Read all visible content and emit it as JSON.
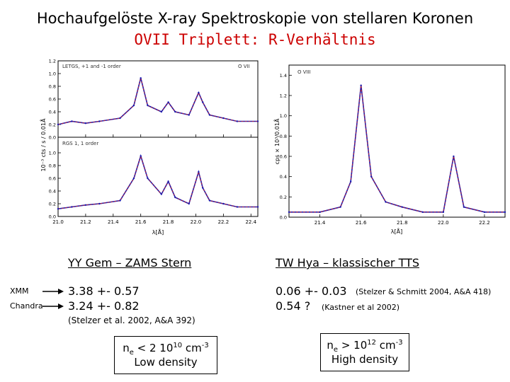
{
  "slide": {
    "title": "Hochaufgelöste X-ray Spektroskopie von stellaren Koronen",
    "subtitle": "OVII Triplett:  R-Verhältnis"
  },
  "left_panel": {
    "caption_top": "LETGS, +1 and -1 order",
    "label_top": "O VII",
    "caption_bottom": "RGS 1, 1 order",
    "ylabel": "10⁻³ cts / s / 0.01Å",
    "xlabel": "λ[Å]"
  },
  "right_panel": {
    "label": "O VIII",
    "ylabel": "cps × 10³/0.01Å",
    "xlabel": "λ[Å]"
  },
  "chart_data": [
    {
      "type": "line",
      "panel": "top",
      "caption": "LETGS, +1 and -1 order",
      "x_ticks": [
        "21.0",
        "21.2",
        "21.4",
        "21.6",
        "21.8",
        "22.0",
        "22.2",
        "22.4"
      ],
      "y_ticks": [
        "0.0",
        "0.2",
        "0.4",
        "0.6",
        "0.8",
        "1.0",
        "1.2"
      ],
      "xlim": [
        21.0,
        22.45
      ],
      "ylim": [
        0,
        1.2
      ],
      "xlabel": "λ[Å]",
      "ylabel": "10⁻³ cts / s / 0.01Å",
      "colors": {
        "data": "#1a1ab0",
        "model": "#d02020"
      },
      "x": [
        21.0,
        21.1,
        21.2,
        21.3,
        21.45,
        21.55,
        21.6,
        21.65,
        21.75,
        21.8,
        21.85,
        21.95,
        22.02,
        22.05,
        22.1,
        22.2,
        22.3,
        22.45
      ],
      "y": [
        0.2,
        0.25,
        0.22,
        0.25,
        0.3,
        0.5,
        0.93,
        0.5,
        0.4,
        0.55,
        0.4,
        0.35,
        0.7,
        0.55,
        0.35,
        0.3,
        0.25,
        0.25
      ]
    },
    {
      "type": "line",
      "panel": "bottom",
      "caption": "RGS 1, 1 order",
      "x_ticks": [
        "21.0",
        "21.2",
        "21.4",
        "21.6",
        "21.8",
        "22.0",
        "22.2",
        "22.4"
      ],
      "y_ticks": [
        "0.0",
        "0.2",
        "0.4",
        "0.6",
        "0.8",
        "1.0"
      ],
      "xlim": [
        21.0,
        22.45
      ],
      "ylim": [
        0,
        1.2
      ],
      "xlabel": "λ[Å]",
      "ylabel": "10⁻³ cts / s / 0.01Å",
      "colors": {
        "data": "#1a1ab0",
        "model": "#d02020"
      },
      "x": [
        21.0,
        21.1,
        21.2,
        21.3,
        21.45,
        21.55,
        21.6,
        21.65,
        21.75,
        21.8,
        21.85,
        21.95,
        22.02,
        22.05,
        22.1,
        22.2,
        22.3,
        22.45
      ],
      "y": [
        0.12,
        0.15,
        0.18,
        0.2,
        0.25,
        0.6,
        0.95,
        0.6,
        0.35,
        0.55,
        0.3,
        0.2,
        0.7,
        0.45,
        0.25,
        0.2,
        0.15,
        0.15
      ]
    },
    {
      "type": "line",
      "panel": "right",
      "label": "O VIII",
      "x_ticks": [
        "21.4",
        "21.6",
        "21.8",
        "22.0",
        "22.2"
      ],
      "y_ticks": [
        "0.0",
        "0.2",
        "0.4",
        "0.6",
        "0.8",
        "1.0",
        "1.2",
        "1.4"
      ],
      "xlim": [
        21.25,
        22.3
      ],
      "ylim": [
        0,
        1.5
      ],
      "xlabel": "λ[Å]",
      "ylabel": "cps × 10³/0.01Å",
      "colors": {
        "data": "#1a1ab0",
        "model": "#d02020"
      },
      "x": [
        21.25,
        21.4,
        21.5,
        21.55,
        21.6,
        21.65,
        21.72,
        21.8,
        21.9,
        22.0,
        22.05,
        22.1,
        22.2,
        22.3
      ],
      "y": [
        0.05,
        0.05,
        0.1,
        0.35,
        1.3,
        0.4,
        0.15,
        0.1,
        0.05,
        0.05,
        0.6,
        0.1,
        0.05,
        0.05
      ]
    }
  ],
  "content": {
    "left_heading": "YY Gem – ZAMS Stern",
    "right_heading": "TW Hya – klassischer TTS",
    "xmm_label": "XMM",
    "chandra_label": "Chandra",
    "left_val1": "3.38 +- 0.57",
    "left_val2": "3.24 +- 0.82",
    "left_ref": "(Stelzer et al. 2002, A&A 392)",
    "right_val1": "0.06 +- 0.03",
    "right_ref1": "(Stelzer & Schmitt 2004, A&A 418)",
    "right_val2": "0.54 ?",
    "right_ref2": "(Kastner et al 2002)",
    "left_box": {
      "ne": "n",
      "sub": "e",
      "lt": " < 2 10",
      "exp": "10",
      "unit": " cm",
      "unit_exp": "-3",
      "desc": "Low density"
    },
    "right_box": {
      "ne": "n",
      "sub": "e",
      "lt": " > 10",
      "exp": "12",
      "unit": "  cm",
      "unit_exp": "-3",
      "desc": "High density"
    }
  }
}
